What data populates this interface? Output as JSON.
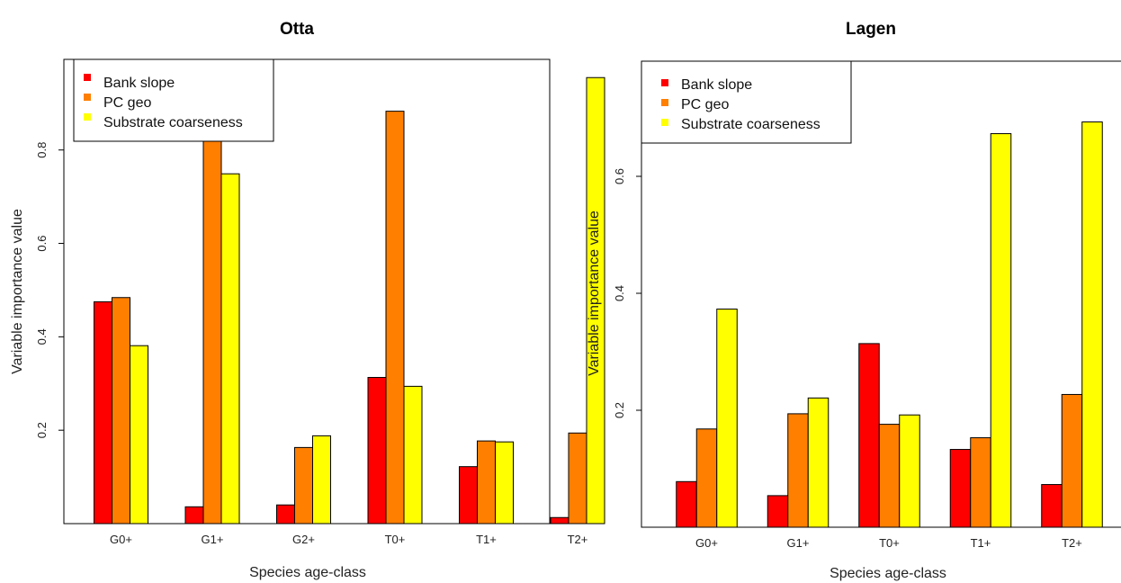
{
  "chart_data": [
    {
      "type": "bar",
      "title": "Otta",
      "xlabel": "Species age-class",
      "ylabel": "Variable importance value",
      "categories": [
        "G0+",
        "G1+",
        "G2+",
        "T0+",
        "T1+",
        "T2+"
      ],
      "yticks": [
        0.2,
        0.4,
        0.6,
        0.8
      ],
      "ytick_labels": [
        "0.2",
        "0.4",
        "0.6",
        "0.8"
      ],
      "ylim": [
        0.0,
        0.994
      ],
      "legend_position": "top-left",
      "grid": false,
      "series": [
        {
          "name": "Bank slope",
          "color": "#ff0000",
          "values": [
            0.475,
            0.036,
            0.04,
            0.313,
            0.122,
            0.013
          ]
        },
        {
          "name": "PC geo",
          "color": "#ff7f00",
          "values": [
            0.484,
            0.974,
            0.163,
            0.883,
            0.177,
            0.194
          ]
        },
        {
          "name": "Substrate coarseness",
          "color": "#ffff00",
          "values": [
            0.381,
            0.749,
            0.188,
            0.294,
            0.175,
            0.955
          ]
        }
      ]
    },
    {
      "type": "bar",
      "title": "Lagen",
      "xlabel": "Species age-class",
      "ylabel": "Variable importance value",
      "categories": [
        "G0+",
        "G1+",
        "T0+",
        "T1+",
        "T2+"
      ],
      "yticks": [
        0.2,
        0.4,
        0.6
      ],
      "ytick_labels": [
        "0.2",
        "0.4",
        "0.6"
      ],
      "ylim": [
        0.0,
        0.792
      ],
      "legend_position": "top-left",
      "grid": false,
      "series": [
        {
          "name": "Bank slope",
          "color": "#ff0000",
          "values": [
            0.078,
            0.054,
            0.314,
            0.133,
            0.073
          ]
        },
        {
          "name": "PC geo",
          "color": "#ff7f00",
          "values": [
            0.168,
            0.194,
            0.176,
            0.153,
            0.227
          ]
        },
        {
          "name": "Substrate coarseness",
          "color": "#ffff00",
          "values": [
            0.373,
            0.221,
            0.192,
            0.673,
            0.693
          ]
        }
      ]
    }
  ]
}
